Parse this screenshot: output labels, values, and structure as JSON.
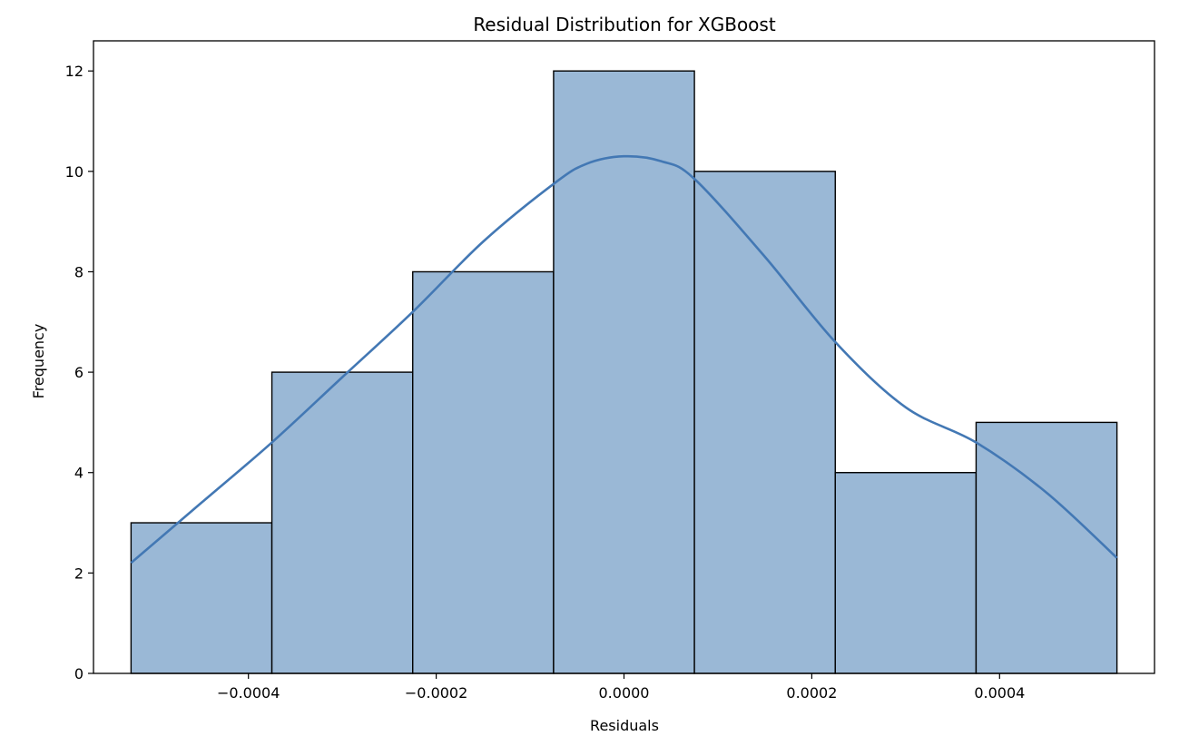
{
  "chart_data": {
    "type": "bar",
    "subtype": "histogram",
    "title": "Residual Distribution for XGBoost",
    "xlabel": "Residuals",
    "ylabel": "Frequency",
    "xlim": [
      -0.000565,
      0.000565
    ],
    "ylim": [
      0,
      12.6
    ],
    "bins": [
      {
        "x0": -0.000525,
        "x1": -0.000375,
        "count": 3
      },
      {
        "x0": -0.000375,
        "x1": -0.000225,
        "count": 6
      },
      {
        "x0": -0.000225,
        "x1": -7.5e-05,
        "count": 8
      },
      {
        "x0": -7.5e-05,
        "x1": 7.5e-05,
        "count": 12
      },
      {
        "x0": 7.5e-05,
        "x1": 0.000225,
        "count": 10
      },
      {
        "x0": 0.000225,
        "x1": 0.000375,
        "count": 4
      },
      {
        "x0": 0.000375,
        "x1": 0.000525,
        "count": 5
      }
    ],
    "x_ticks": [
      {
        "value": -0.0004,
        "label": "−0.0004"
      },
      {
        "value": -0.0002,
        "label": "−0.0002"
      },
      {
        "value": 0.0,
        "label": "0.0000"
      },
      {
        "value": 0.0002,
        "label": "0.0002"
      },
      {
        "value": 0.0004,
        "label": "0.0004"
      }
    ],
    "y_ticks": [
      {
        "value": 0,
        "label": "0"
      },
      {
        "value": 2,
        "label": "2"
      },
      {
        "value": 4,
        "label": "4"
      },
      {
        "value": 6,
        "label": "6"
      },
      {
        "value": 8,
        "label": "8"
      },
      {
        "value": 10,
        "label": "10"
      },
      {
        "value": 12,
        "label": "12"
      }
    ],
    "kde": {
      "x": [
        -0.000525,
        -0.00045,
        -0.000375,
        -0.0003,
        -0.000225,
        -0.00015,
        -7.5e-05,
        -4e-05,
        0.0,
        4e-05,
        7.5e-05,
        0.00015,
        0.000225,
        0.0003,
        0.000375,
        0.00045,
        0.000525
      ],
      "y": [
        2.2,
        3.4,
        4.6,
        5.9,
        7.2,
        8.6,
        9.75,
        10.15,
        10.3,
        10.2,
        9.85,
        8.3,
        6.6,
        5.3,
        4.6,
        3.6,
        2.3
      ]
    },
    "colors": {
      "bar_fill": "#9ab8d6",
      "bar_edge": "#000000",
      "kde_line": "#4378b4"
    },
    "grid": false,
    "legend": "none"
  }
}
